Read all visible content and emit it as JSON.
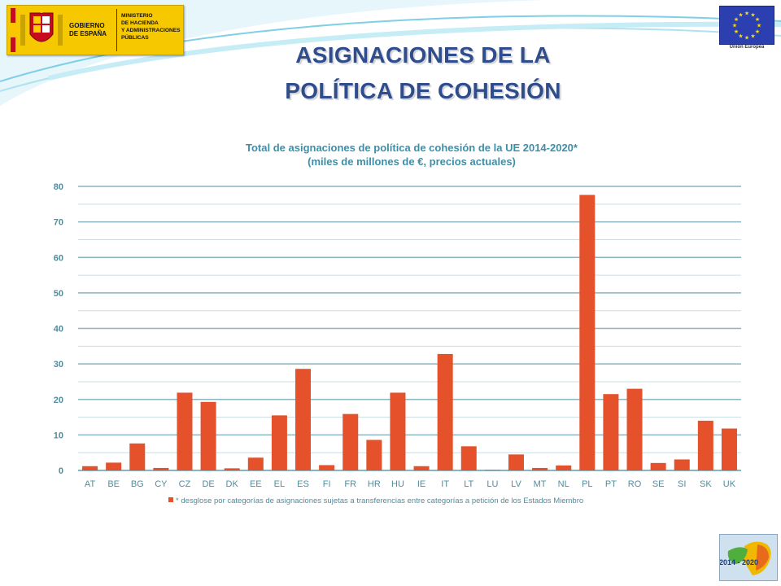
{
  "header": {
    "government_logo": {
      "name_lines": [
        "GOBIERNO",
        "DE ESPAÑA"
      ],
      "ministry_lines": [
        "MINISTERIO",
        "DE HACIENDA",
        "Y ADMINISTRACIONES",
        "PÚBLICAS"
      ]
    },
    "eu_logo": {
      "caption": "Unión Europea"
    },
    "title_line1": "ASIGNACIONES DE LA",
    "title_line2": "POLÍTICA DE COHESIÓN"
  },
  "footer_badge": {
    "text": "2014 - 2020"
  },
  "chart_data": {
    "type": "bar",
    "title_line1": "Total de asignaciones de política de cohesión de la UE 2014-2020*",
    "title_line2": "(miles de millones de €, precios actuales)",
    "categories": [
      "AT",
      "BE",
      "BG",
      "CY",
      "CZ",
      "DE",
      "DK",
      "EE",
      "EL",
      "ES",
      "FI",
      "FR",
      "HR",
      "HU",
      "IE",
      "IT",
      "LT",
      "LU",
      "LV",
      "MT",
      "NL",
      "PL",
      "PT",
      "RO",
      "SE",
      "SI",
      "SK",
      "UK"
    ],
    "values": [
      1.2,
      2.2,
      7.6,
      0.7,
      21.9,
      19.3,
      0.6,
      3.6,
      15.5,
      28.6,
      1.5,
      15.9,
      8.6,
      21.9,
      1.2,
      32.8,
      6.8,
      0.1,
      4.5,
      0.7,
      1.4,
      77.6,
      21.5,
      23.0,
      2.1,
      3.1,
      14.0,
      11.8
    ],
    "yticks": [
      0,
      10,
      20,
      30,
      40,
      50,
      60,
      70,
      80
    ],
    "ylim": [
      0,
      80
    ],
    "minor_grid": true,
    "legend_note": "* desglose por categorías de asignaciones sujetas a transferencias entre categorías a petición de los Estados Miembro",
    "colors": {
      "bar": "#e4512a",
      "grid": "#8ab4bf",
      "title": "#3d8fa7",
      "axis_text": "#4f8d9e"
    }
  }
}
